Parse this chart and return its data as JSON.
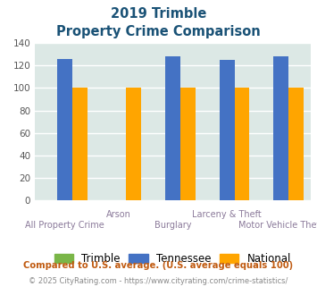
{
  "title_line1": "2019 Trimble",
  "title_line2": "Property Crime Comparison",
  "categories": [
    "All Property Crime",
    "Arson",
    "Burglary",
    "Larceny & Theft",
    "Motor Vehicle Theft"
  ],
  "xlabels_row1": [
    "",
    "Arson",
    "",
    "Larceny & Theft",
    ""
  ],
  "xlabels_row2": [
    "All Property Crime",
    "",
    "Burglary",
    "",
    "Motor Vehicle Theft"
  ],
  "trimble": [
    0,
    0,
    0,
    0,
    0
  ],
  "tennessee": [
    126,
    0,
    128,
    125,
    128
  ],
  "national": [
    100,
    100,
    100,
    100,
    100
  ],
  "bar_width": 0.28,
  "trimble_color": "#7ab648",
  "tennessee_color": "#4472c4",
  "national_color": "#ffa500",
  "ylim": [
    0,
    140
  ],
  "yticks": [
    0,
    20,
    40,
    60,
    80,
    100,
    120,
    140
  ],
  "background_color": "#dce8e5",
  "grid_color": "#ffffff",
  "title_color": "#1a5276",
  "xlabel_color1": "#8b7a9a",
  "xlabel_color2": "#8b7a9a",
  "footnote1": "Compared to U.S. average. (U.S. average equals 100)",
  "footnote2": "© 2025 CityRating.com - https://www.cityrating.com/crime-statistics/",
  "footnote1_color": "#c05a10",
  "footnote2_color": "#888888",
  "legend_labels": [
    "Trimble",
    "Tennessee",
    "National"
  ]
}
